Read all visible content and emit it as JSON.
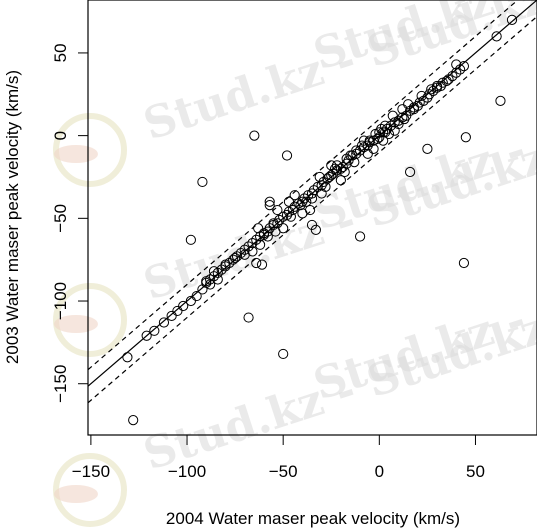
{
  "chart_data": {
    "type": "scatter",
    "title": "",
    "xlabel": "2004 Water maser peak velocity (km/s)",
    "ylabel": "2003 Water maser peak velocity (km/s)",
    "xlim": [
      -151.5,
      82
    ],
    "ylim": [
      -181,
      82
    ],
    "x_ticks": [
      -150,
      -100,
      -50,
      0,
      50
    ],
    "x_tick_labels": [
      "−150",
      "−100",
      "−50",
      "0",
      "50"
    ],
    "y_ticks": [
      -150,
      -100,
      -50,
      0,
      50
    ],
    "y_tick_labels": [
      "−150",
      "−100",
      "−50",
      "0",
      "50"
    ],
    "grid": false,
    "legend": "none",
    "lines": [
      {
        "style": "solid",
        "x": [
          -151.5,
          82
        ],
        "y": [
          -151.5,
          82
        ]
      },
      {
        "style": "dashed",
        "x": [
          -151.5,
          82
        ],
        "y": [
          -141.5,
          92
        ]
      },
      {
        "style": "dashed",
        "x": [
          -151.5,
          82
        ],
        "y": [
          -161.5,
          72
        ]
      }
    ],
    "points": [
      [
        69,
        70
      ],
      [
        61,
        60
      ],
      [
        63,
        21
      ],
      [
        44,
        42
      ],
      [
        42,
        40
      ],
      [
        40,
        38
      ],
      [
        38,
        36
      ],
      [
        35,
        33
      ],
      [
        33,
        32
      ],
      [
        30,
        29
      ],
      [
        28,
        27
      ],
      [
        26,
        25
      ],
      [
        25,
        23
      ],
      [
        23,
        21
      ],
      [
        21,
        20
      ],
      [
        18,
        17
      ],
      [
        16,
        15
      ],
      [
        14,
        12
      ],
      [
        12,
        11
      ],
      [
        10,
        9
      ],
      [
        8,
        8
      ],
      [
        6,
        6
      ],
      [
        4,
        4
      ],
      [
        2,
        2
      ],
      [
        0,
        -1
      ],
      [
        -1,
        -2
      ],
      [
        -3,
        -3
      ],
      [
        -5,
        -4
      ],
      [
        -6,
        -6
      ],
      [
        -8,
        -7
      ],
      [
        -10,
        -9
      ],
      [
        -12,
        -11
      ],
      [
        -14,
        -12
      ],
      [
        -16,
        -15
      ],
      [
        -17,
        -17
      ],
      [
        -19,
        -19
      ],
      [
        -20,
        -20
      ],
      [
        -22,
        -21
      ],
      [
        -24,
        -23
      ],
      [
        -25,
        -24
      ],
      [
        -27,
        -26
      ],
      [
        -29,
        -28
      ],
      [
        -30,
        -30
      ],
      [
        -32,
        -31
      ],
      [
        -34,
        -33
      ],
      [
        -35,
        -35
      ],
      [
        -37,
        -36
      ],
      [
        -39,
        -38
      ],
      [
        -40,
        -40
      ],
      [
        -42,
        -41
      ],
      [
        -44,
        -43
      ],
      [
        -45,
        -45
      ],
      [
        -47,
        -46
      ],
      [
        -48,
        -48
      ],
      [
        -50,
        -49
      ],
      [
        -52,
        -51
      ],
      [
        -53,
        -53
      ],
      [
        -55,
        -54
      ],
      [
        -57,
        -56
      ],
      [
        -58,
        -58
      ],
      [
        -60,
        -59
      ],
      [
        -62,
        -61
      ],
      [
        -64,
        -63
      ],
      [
        -66,
        -65
      ],
      [
        -68,
        -67
      ],
      [
        -70,
        -69
      ],
      [
        -72,
        -71
      ],
      [
        -74,
        -73
      ],
      [
        -76,
        -75
      ],
      [
        -78,
        -77
      ],
      [
        -80,
        -79
      ],
      [
        -82,
        -81
      ],
      [
        -84,
        -83
      ],
      [
        -86,
        -85
      ],
      [
        -88,
        -87
      ],
      [
        -90,
        -89
      ],
      [
        -92,
        -93
      ],
      [
        -95,
        -97
      ],
      [
        -98,
        -100
      ],
      [
        -102,
        -103
      ],
      [
        -105,
        -106
      ],
      [
        -108,
        -109
      ],
      [
        -112,
        -113
      ],
      [
        -117,
        -118
      ],
      [
        -121,
        -121
      ],
      [
        -131,
        -134
      ],
      [
        -128,
        -172
      ],
      [
        -65,
        0
      ],
      [
        -48,
        -12
      ],
      [
        -92,
        -28
      ],
      [
        -98,
        -63
      ],
      [
        -68,
        -110
      ],
      [
        -50,
        -132
      ],
      [
        44,
        -77
      ],
      [
        45,
        -1
      ],
      [
        25,
        -8
      ],
      [
        16,
        -22
      ],
      [
        -10,
        -61
      ],
      [
        -33,
        -57
      ],
      [
        -35,
        -54
      ],
      [
        -57,
        -42
      ],
      [
        -63,
        -56
      ],
      [
        -57,
        -40
      ],
      [
        -53,
        -45
      ],
      [
        -61,
        -78
      ],
      [
        -64,
        -77
      ],
      [
        -66,
        -70
      ],
      [
        -54,
        -58
      ],
      [
        -50,
        -56
      ],
      [
        -41,
        -42
      ],
      [
        -38,
        -40
      ],
      [
        -26,
        -25
      ],
      [
        -22,
        -18
      ],
      [
        -15,
        -12
      ],
      [
        -9,
        -6
      ],
      [
        -5,
        -3
      ],
      [
        -2,
        1
      ],
      [
        1,
        4
      ],
      [
        3,
        2
      ],
      [
        5,
        1
      ],
      [
        7,
        12
      ],
      [
        10,
        7
      ],
      [
        13,
        10
      ],
      [
        18,
        16
      ],
      [
        20,
        18
      ],
      [
        27,
        28
      ],
      [
        30,
        30
      ],
      [
        36,
        34
      ],
      [
        -13,
        -16
      ],
      [
        -18,
        -22
      ],
      [
        -28,
        -31
      ],
      [
        -31,
        -25
      ],
      [
        -36,
        -45
      ],
      [
        -44,
        -36
      ],
      [
        -46,
        -49
      ],
      [
        -60,
        -60
      ],
      [
        -70,
        -72
      ],
      [
        -75,
        -74
      ],
      [
        -80,
        -78
      ],
      [
        -88,
        -90
      ],
      [
        -90,
        -88
      ],
      [
        -6,
        -11
      ],
      [
        -3,
        -8
      ],
      [
        2,
        -3
      ],
      [
        -20,
        -27
      ],
      [
        -25,
        -18
      ],
      [
        -40,
        -47
      ],
      [
        -47,
        -40
      ],
      [
        -55,
        -53
      ],
      [
        -58,
        -61
      ],
      [
        -62,
        -66
      ],
      [
        -84,
        -87
      ],
      [
        -86,
        -82
      ],
      [
        8,
        3
      ],
      [
        12,
        16
      ],
      [
        15,
        19
      ],
      [
        22,
        24
      ],
      [
        32,
        30
      ],
      [
        40,
        43
      ],
      [
        -35,
        -38
      ],
      [
        -30,
        -35
      ],
      [
        -12,
        -9
      ],
      [
        -8,
        -3
      ],
      [
        0,
        2
      ],
      [
        3,
        6
      ],
      [
        -17,
        -14
      ],
      [
        -23,
        -20
      ]
    ]
  },
  "watermark": {
    "text": "Stud.kz - Stud.kz"
  }
}
